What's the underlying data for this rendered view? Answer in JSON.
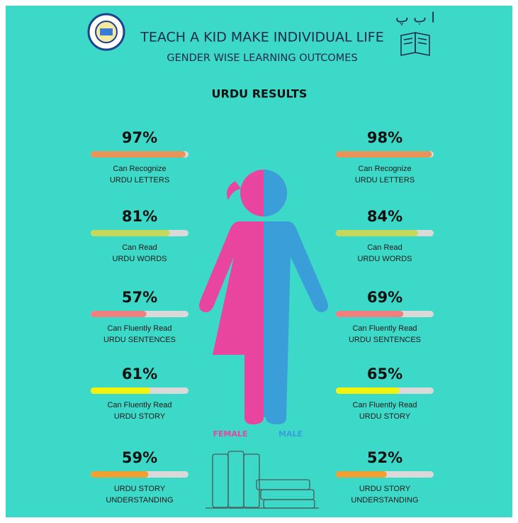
{
  "header": {
    "title": "TEACH A KID MAKE INDIVIDUAL LIFE",
    "subtitle": "GENDER WISE LEARNING OUTCOMES",
    "urdu": "ا ب پ"
  },
  "section_title": "URDU RESULTS",
  "female": {
    "name": "FEMALE",
    "color": "#e9449e",
    "items": [
      {
        "value": 97,
        "value_label": "97%",
        "lines": [
          "Can Recognize",
          "URDU LETTERS"
        ],
        "color": "#e8935a"
      },
      {
        "value": 81,
        "value_label": "81%",
        "lines": [
          "Can Read",
          "URDU WORDS"
        ],
        "color": "#c6d85c"
      },
      {
        "value": 57,
        "value_label": "57%",
        "lines": [
          "Can Fluently Read",
          "URDU SENTENCES"
        ],
        "color": "#f08080"
      },
      {
        "value": 61,
        "value_label": "61%",
        "lines": [
          "Can Fluently Read",
          "URDU STORY"
        ],
        "color": "#f4f20c"
      },
      {
        "value": 59,
        "value_label": "59%",
        "lines": [
          "URDU STORY",
          "UNDERSTANDING"
        ],
        "color": "#f0a030"
      }
    ]
  },
  "male": {
    "name": "MALE",
    "color": "#3a9fd8",
    "items": [
      {
        "value": 98,
        "value_label": "98%",
        "lines": [
          "Can Recognize",
          "URDU LETTERS"
        ],
        "color": "#e8935a"
      },
      {
        "value": 84,
        "value_label": "84%",
        "lines": [
          "Can Read",
          "URDU WORDS"
        ],
        "color": "#c6d85c"
      },
      {
        "value": 69,
        "value_label": "69%",
        "lines": [
          "Can Fluently Read",
          "URDU SENTENCES"
        ],
        "color": "#f08080"
      },
      {
        "value": 65,
        "value_label": "65%",
        "lines": [
          "Can Fluently Read",
          "URDU STORY"
        ],
        "color": "#f4f20c"
      },
      {
        "value": 52,
        "value_label": "52%",
        "lines": [
          "URDU STORY",
          "UNDERSTANDING"
        ],
        "color": "#f0a030"
      }
    ]
  }
}
